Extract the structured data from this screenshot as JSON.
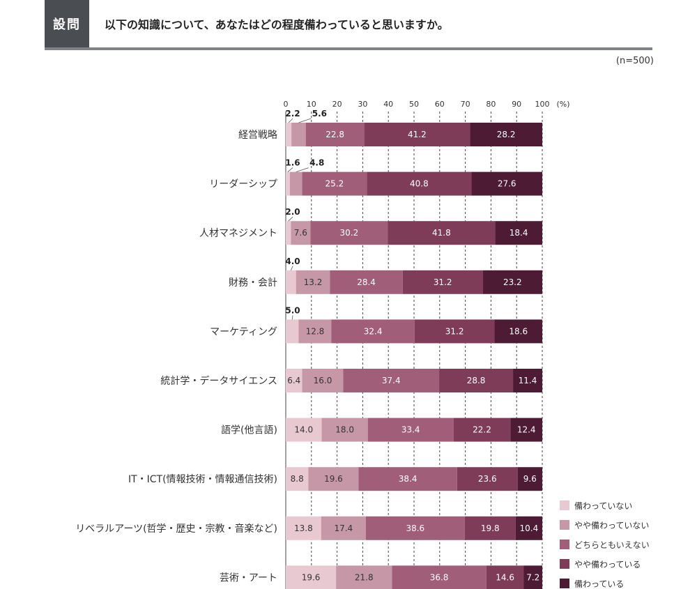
{
  "header": {
    "badge": "設問",
    "question": "以下の知識について、あなたはどの程度備わっていると思いますか。"
  },
  "sample": "(n=500)",
  "chart_data": {
    "type": "bar",
    "orientation": "horizontal",
    "stacked": true,
    "xlim": [
      0,
      100
    ],
    "x_ticks": [
      "0",
      "10",
      "20",
      "30",
      "40",
      "50",
      "60",
      "70",
      "80",
      "90",
      "100"
    ],
    "x_unit": "(%)",
    "grid": true,
    "legend_position": "bottom-right",
    "categories": [
      "経営戦略",
      "リーダーシップ",
      "人材マネジメント",
      "財務・会計",
      "マーケティング",
      "統計学・データサイエンス",
      "語学(他言語)",
      "IT・ICT(情報技術・情報通信技術)",
      "リベラルアーツ(哲学・歴史・宗教・音楽など)",
      "芸術・アート"
    ],
    "series": [
      {
        "name": "備わっていない",
        "color": "#e9c9d1",
        "values": [
          2.2,
          1.6,
          2.0,
          4.0,
          5.0,
          6.4,
          14.0,
          8.8,
          13.8,
          19.6
        ]
      },
      {
        "name": "やや備わっていない",
        "color": "#c597a7",
        "values": [
          5.6,
          4.8,
          7.6,
          13.2,
          12.8,
          16.0,
          18.0,
          19.6,
          17.4,
          21.8
        ]
      },
      {
        "name": "どちらともいえない",
        "color": "#a05e78",
        "values": [
          22.8,
          25.2,
          30.2,
          28.4,
          32.4,
          37.4,
          33.4,
          38.4,
          38.6,
          36.8
        ]
      },
      {
        "name": "やや備わっている",
        "color": "#7e3c58",
        "values": [
          41.2,
          40.8,
          41.8,
          31.2,
          31.2,
          28.8,
          22.2,
          23.6,
          19.8,
          14.6
        ]
      },
      {
        "name": "備わっている",
        "color": "#4d1b33",
        "values": [
          28.2,
          27.6,
          18.4,
          23.2,
          18.6,
          11.4,
          12.4,
          9.6,
          10.4,
          7.2
        ]
      }
    ]
  }
}
